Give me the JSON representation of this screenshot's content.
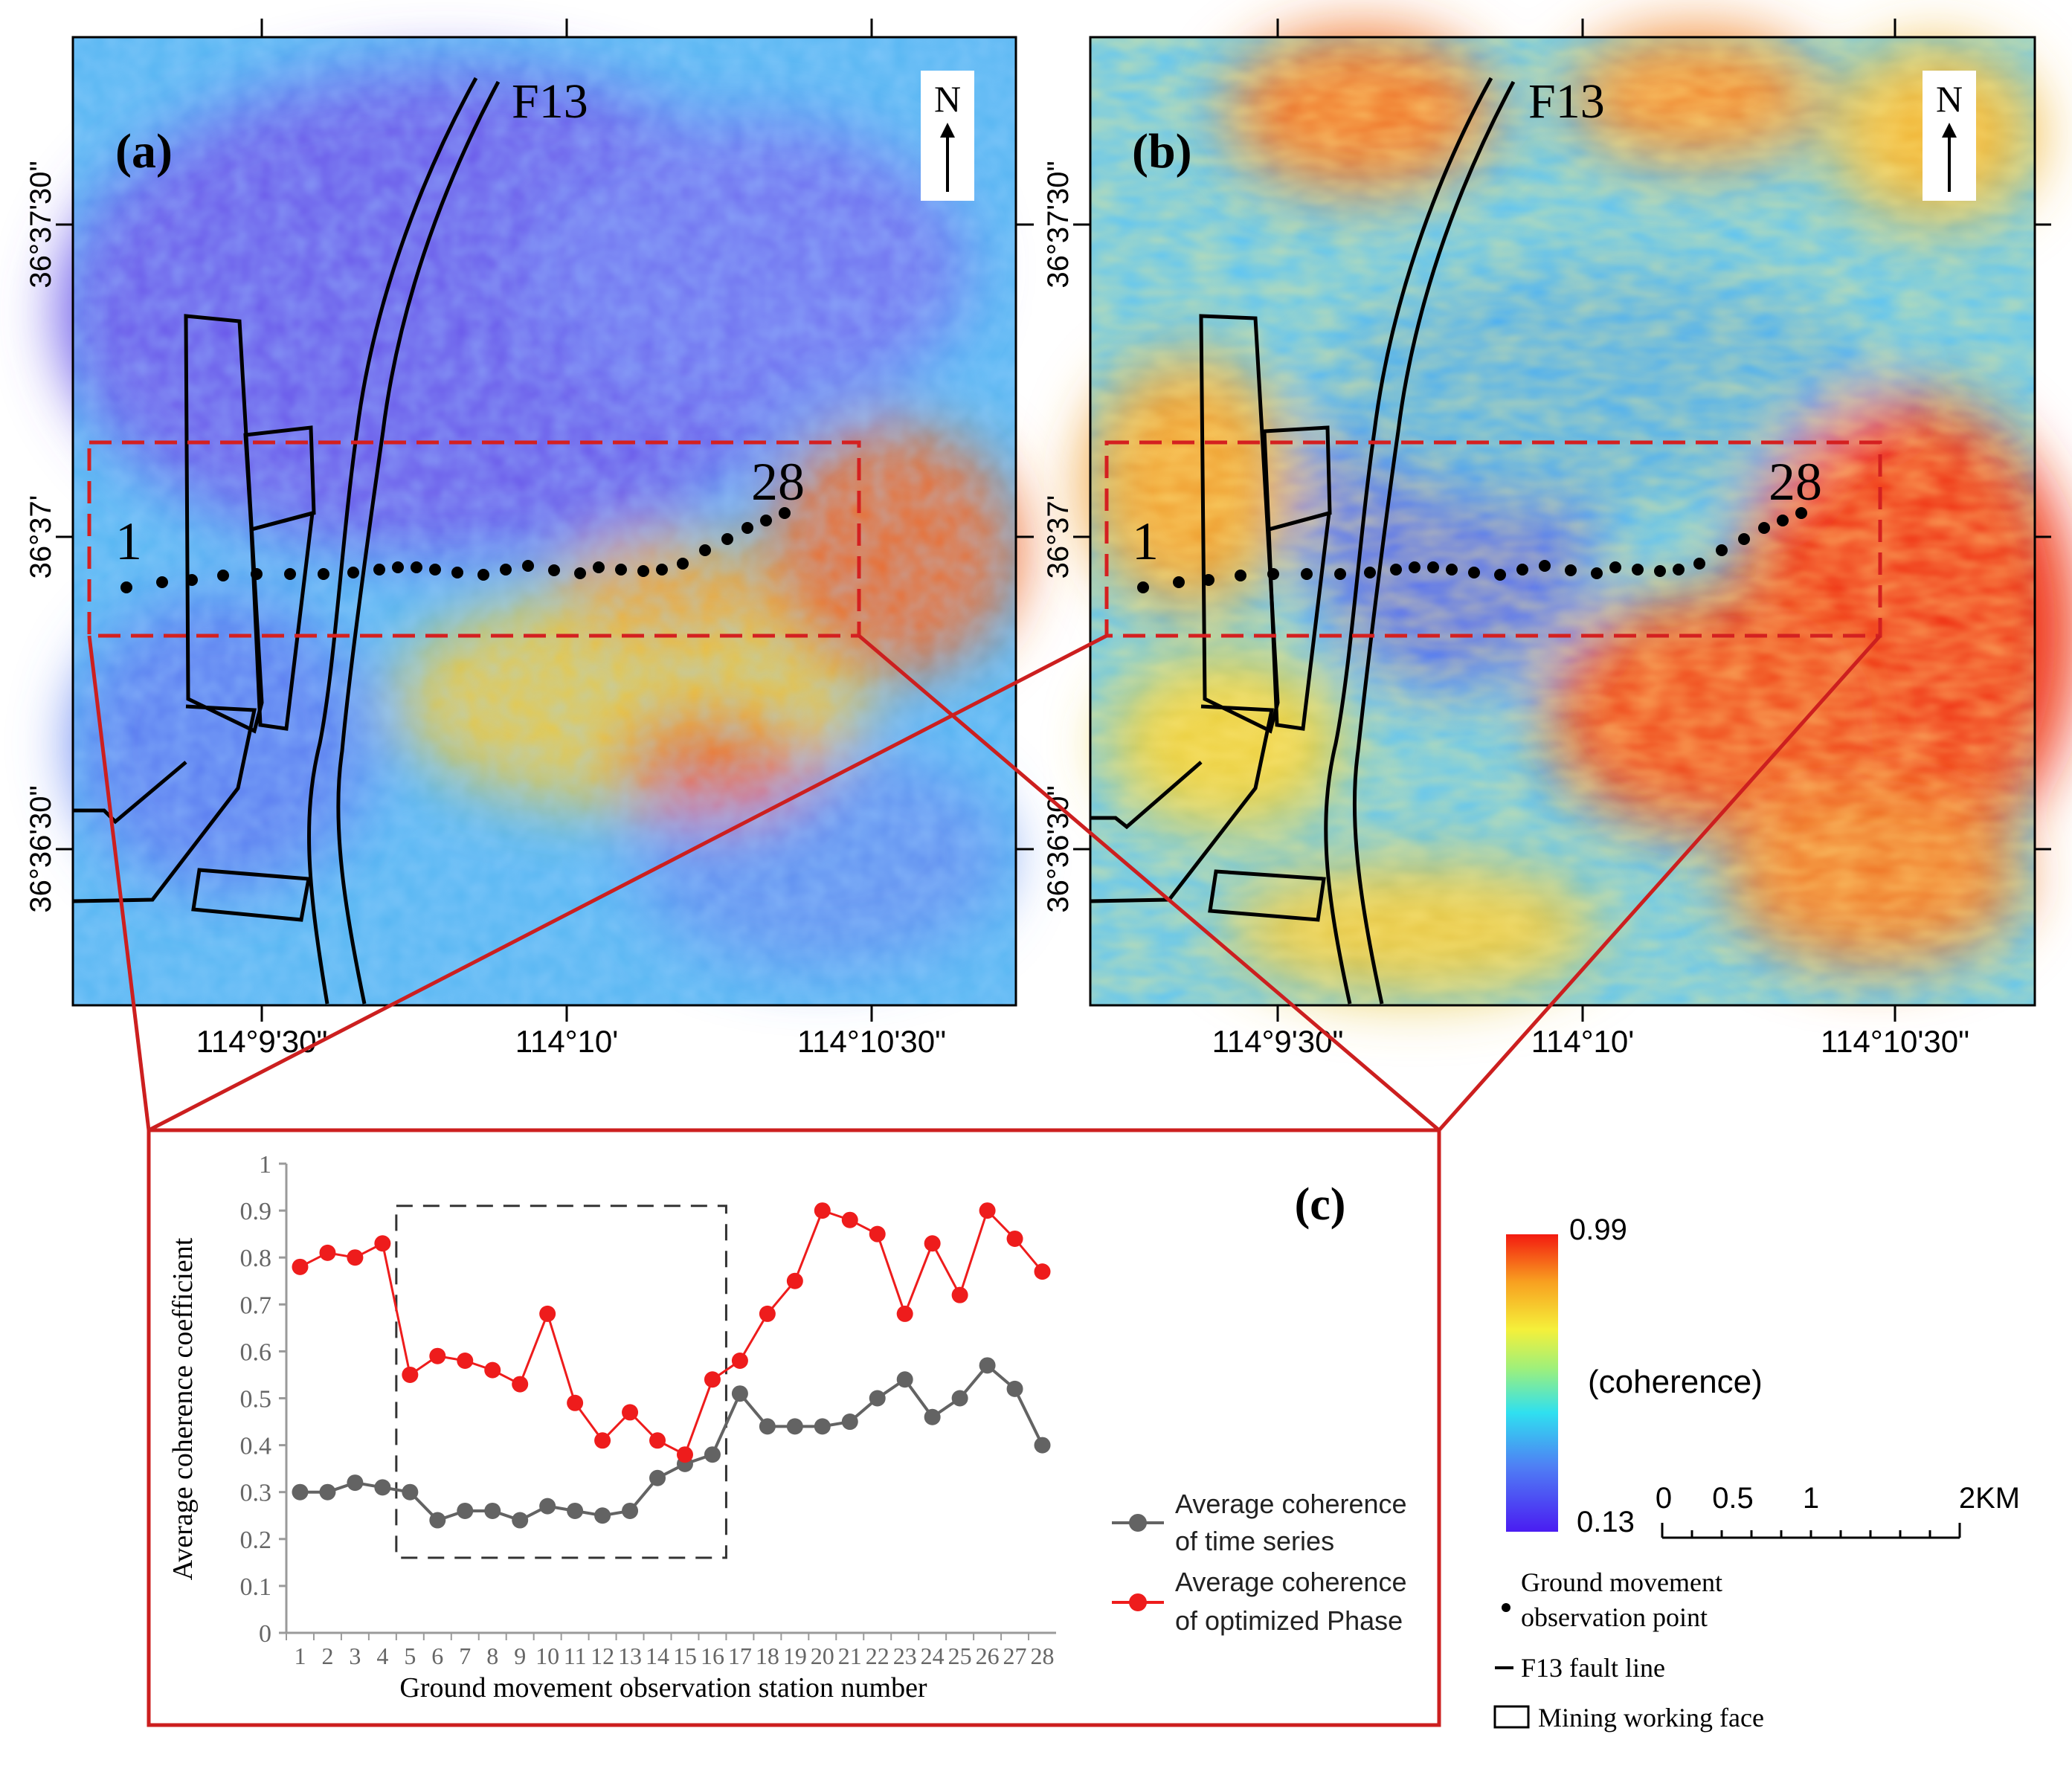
{
  "colors": {
    "coh_low": "#4a1cf2",
    "coh_high": "#f31a10",
    "series_time": "#636363",
    "series_opt": "#ee1c1c",
    "frame_red": "#cc1f1f",
    "study_box": "#d42020"
  },
  "map_a": {
    "label": "(a)",
    "north": "N",
    "fault": "F13",
    "pt_start": "1",
    "pt_end": "28",
    "lat_ticks": [
      "36°37'30\"",
      "36°37'",
      "36°36'30\""
    ],
    "lon_ticks": [
      "114°9'30\"",
      "114°10'",
      "114°10'30\""
    ]
  },
  "map_b": {
    "label": "(b)",
    "north": "N",
    "fault": "F13",
    "pt_start": "1",
    "pt_end": "28",
    "lat_ticks": [
      "36°37'30\"",
      "36°37'",
      "36°36'30\""
    ],
    "lon_ticks": [
      "114°9'30\"",
      "114°10'",
      "114°10'30\""
    ]
  },
  "legend": {
    "colorbar_max": "0.99",
    "colorbar_min": "0.13",
    "colorbar_label": "(coherence)",
    "scale_labels": [
      "0",
      "0.5",
      "1",
      "2KM"
    ],
    "point_label_1": "Ground movement",
    "point_label_2": "observation point",
    "fault_label": "F13 fault line",
    "face_label": "Mining working face"
  },
  "chart_data": {
    "type": "line",
    "panel_label": "(c)",
    "title": "",
    "xlabel": "Ground movement observation station number",
    "ylabel": "Average coherence coefficient",
    "categories": [
      "1",
      "2",
      "3",
      "4",
      "5",
      "6",
      "7",
      "8",
      "9",
      "10",
      "11",
      "12",
      "13",
      "14",
      "15",
      "16",
      "17",
      "18",
      "19",
      "20",
      "21",
      "22",
      "23",
      "24",
      "25",
      "26",
      "27",
      "28"
    ],
    "ylim": [
      0,
      1
    ],
    "yticks": [
      "0",
      "0.1",
      "0.2",
      "0.3",
      "0.4",
      "0.5",
      "0.6",
      "0.7",
      "0.8",
      "0.9",
      "1"
    ],
    "highlight_range": {
      "x_from": 4.5,
      "x_to": 16,
      "y_from": 0.16,
      "y_to": 0.91
    },
    "series": [
      {
        "name": "Average coherence of time series",
        "name_line1": "Average coherence",
        "name_line2": "of time series",
        "color": "#636363",
        "values": [
          0.3,
          0.3,
          0.32,
          0.31,
          0.3,
          0.24,
          0.26,
          0.26,
          0.24,
          0.27,
          0.26,
          0.25,
          0.26,
          0.33,
          0.36,
          0.38,
          0.51,
          0.44,
          0.44,
          0.44,
          0.45,
          0.5,
          0.54,
          0.46,
          0.5,
          0.57,
          0.52,
          0.4
        ]
      },
      {
        "name": "Average coherence of optimized Phase",
        "name_line1": "Average coherence",
        "name_line2": "of optimized Phase",
        "color": "#ee1c1c",
        "values": [
          0.78,
          0.81,
          0.8,
          0.83,
          0.55,
          0.59,
          0.58,
          0.56,
          0.53,
          0.68,
          0.49,
          0.41,
          0.47,
          0.41,
          0.38,
          0.54,
          0.58,
          0.68,
          0.75,
          0.9,
          0.88,
          0.85,
          0.68,
          0.83,
          0.72,
          0.9,
          0.84,
          0.77
        ]
      }
    ]
  }
}
